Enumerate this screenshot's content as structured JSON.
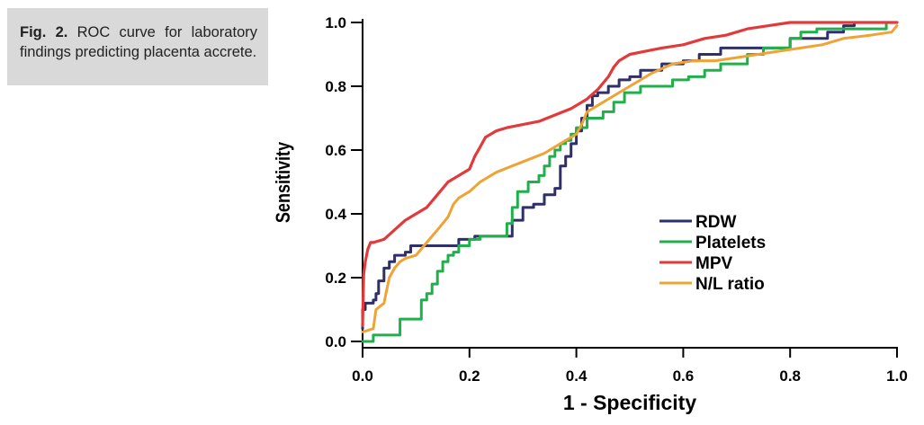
{
  "caption": {
    "label": "Fig. 2.",
    "text": "ROC curve for laboratory findings predicting placenta accrete."
  },
  "chart_data": {
    "type": "line",
    "title": "ROC curve for laboratory findings predicting placenta accrete",
    "xlabel": "1 - Specificity",
    "ylabel": "Sensitivity",
    "xlim": [
      0,
      1
    ],
    "ylim": [
      0,
      1
    ],
    "xticks": [
      "0.0",
      "0.2",
      "0.4",
      "0.6",
      "0.8",
      "1.0"
    ],
    "yticks": [
      "0.0",
      "0.2",
      "0.4",
      "0.6",
      "0.8",
      "1.0"
    ],
    "legend_position": "center-right",
    "series": [
      {
        "name": "RDW",
        "color": "#2e2f6b",
        "step": true,
        "x": [
          0,
          0,
          0.005,
          0.005,
          0.02,
          0.02,
          0.025,
          0.025,
          0.03,
          0.03,
          0.04,
          0.04,
          0.05,
          0.05,
          0.06,
          0.06,
          0.08,
          0.08,
          0.09,
          0.09,
          0.18,
          0.18,
          0.21,
          0.21,
          0.28,
          0.28,
          0.3,
          0.3,
          0.32,
          0.32,
          0.34,
          0.34,
          0.36,
          0.36,
          0.37,
          0.37,
          0.38,
          0.38,
          0.39,
          0.39,
          0.4,
          0.4,
          0.41,
          0.41,
          0.42,
          0.42,
          0.43,
          0.43,
          0.44,
          0.44,
          0.46,
          0.46,
          0.48,
          0.48,
          0.5,
          0.5,
          0.52,
          0.52,
          0.56,
          0.56,
          0.6,
          0.6,
          0.63,
          0.63,
          0.67,
          0.67,
          0.8,
          0.8,
          0.87,
          0.87,
          0.9,
          0.9,
          0.92,
          0.92,
          1.0
        ],
        "y": [
          0.04,
          0.1,
          0.1,
          0.12,
          0.12,
          0.13,
          0.13,
          0.15,
          0.15,
          0.19,
          0.19,
          0.23,
          0.23,
          0.25,
          0.25,
          0.27,
          0.27,
          0.28,
          0.28,
          0.3,
          0.3,
          0.32,
          0.32,
          0.33,
          0.33,
          0.38,
          0.38,
          0.42,
          0.42,
          0.43,
          0.43,
          0.46,
          0.46,
          0.48,
          0.48,
          0.55,
          0.55,
          0.58,
          0.58,
          0.62,
          0.62,
          0.66,
          0.66,
          0.7,
          0.7,
          0.74,
          0.74,
          0.77,
          0.77,
          0.78,
          0.78,
          0.8,
          0.8,
          0.82,
          0.82,
          0.83,
          0.83,
          0.85,
          0.85,
          0.87,
          0.87,
          0.88,
          0.88,
          0.9,
          0.9,
          0.92,
          0.92,
          0.95,
          0.95,
          0.97,
          0.97,
          0.99,
          0.99,
          1.0,
          1.0
        ]
      },
      {
        "name": "Platelets",
        "color": "#20b04b",
        "step": true,
        "x": [
          0,
          0,
          0.02,
          0.02,
          0.07,
          0.07,
          0.11,
          0.11,
          0.12,
          0.12,
          0.13,
          0.13,
          0.14,
          0.14,
          0.15,
          0.15,
          0.16,
          0.16,
          0.17,
          0.17,
          0.18,
          0.18,
          0.2,
          0.2,
          0.22,
          0.22,
          0.27,
          0.27,
          0.28,
          0.28,
          0.29,
          0.29,
          0.31,
          0.31,
          0.33,
          0.33,
          0.34,
          0.34,
          0.35,
          0.35,
          0.36,
          0.36,
          0.37,
          0.37,
          0.38,
          0.38,
          0.39,
          0.39,
          0.4,
          0.4,
          0.42,
          0.42,
          0.45,
          0.45,
          0.47,
          0.47,
          0.49,
          0.49,
          0.52,
          0.52,
          0.58,
          0.58,
          0.61,
          0.61,
          0.64,
          0.64,
          0.67,
          0.67,
          0.72,
          0.72,
          0.75,
          0.75,
          0.8,
          0.8,
          0.82,
          0.82,
          0.85,
          0.85,
          0.98,
          0.98,
          1.0
        ],
        "y": [
          0,
          0.0,
          0.0,
          0.02,
          0.02,
          0.07,
          0.07,
          0.13,
          0.13,
          0.15,
          0.15,
          0.18,
          0.18,
          0.22,
          0.22,
          0.25,
          0.25,
          0.27,
          0.27,
          0.28,
          0.28,
          0.3,
          0.3,
          0.32,
          0.32,
          0.33,
          0.33,
          0.37,
          0.37,
          0.42,
          0.42,
          0.47,
          0.47,
          0.5,
          0.5,
          0.52,
          0.52,
          0.55,
          0.55,
          0.58,
          0.58,
          0.6,
          0.6,
          0.62,
          0.62,
          0.63,
          0.63,
          0.65,
          0.65,
          0.67,
          0.67,
          0.7,
          0.7,
          0.72,
          0.72,
          0.75,
          0.75,
          0.78,
          0.78,
          0.8,
          0.8,
          0.82,
          0.82,
          0.83,
          0.83,
          0.85,
          0.85,
          0.87,
          0.87,
          0.9,
          0.9,
          0.92,
          0.92,
          0.95,
          0.95,
          0.97,
          0.97,
          0.98,
          0.98,
          1.0,
          1.0
        ]
      },
      {
        "name": "MPV",
        "color": "#e23a3a",
        "step": false,
        "x": [
          0,
          0.002,
          0.005,
          0.01,
          0.015,
          0.02,
          0.04,
          0.06,
          0.08,
          0.1,
          0.12,
          0.14,
          0.16,
          0.18,
          0.2,
          0.21,
          0.22,
          0.23,
          0.25,
          0.27,
          0.3,
          0.33,
          0.36,
          0.39,
          0.42,
          0.44,
          0.46,
          0.47,
          0.48,
          0.5,
          0.53,
          0.56,
          0.6,
          0.64,
          0.68,
          0.72,
          0.76,
          0.8,
          0.9,
          1.0
        ],
        "y": [
          0.05,
          0.21,
          0.25,
          0.29,
          0.31,
          0.31,
          0.32,
          0.35,
          0.38,
          0.4,
          0.42,
          0.46,
          0.5,
          0.52,
          0.54,
          0.58,
          0.61,
          0.64,
          0.66,
          0.67,
          0.68,
          0.69,
          0.71,
          0.73,
          0.76,
          0.79,
          0.83,
          0.86,
          0.88,
          0.9,
          0.91,
          0.92,
          0.93,
          0.95,
          0.96,
          0.98,
          0.99,
          1.0,
          1.0,
          1.0
        ]
      },
      {
        "name": "N/L ratio",
        "color": "#f0a335",
        "step": false,
        "x": [
          0,
          0.02,
          0.025,
          0.04,
          0.045,
          0.05,
          0.06,
          0.07,
          0.08,
          0.1,
          0.12,
          0.14,
          0.16,
          0.17,
          0.18,
          0.2,
          0.22,
          0.25,
          0.28,
          0.31,
          0.34,
          0.37,
          0.4,
          0.41,
          0.42,
          0.44,
          0.47,
          0.5,
          0.54,
          0.58,
          0.62,
          0.66,
          0.7,
          0.74,
          0.78,
          0.82,
          0.86,
          0.9,
          0.95,
          0.99,
          1.0
        ],
        "y": [
          0.03,
          0.04,
          0.1,
          0.12,
          0.16,
          0.2,
          0.23,
          0.25,
          0.26,
          0.27,
          0.31,
          0.35,
          0.39,
          0.43,
          0.45,
          0.47,
          0.5,
          0.53,
          0.55,
          0.57,
          0.59,
          0.62,
          0.65,
          0.68,
          0.72,
          0.74,
          0.77,
          0.8,
          0.84,
          0.87,
          0.88,
          0.88,
          0.89,
          0.9,
          0.91,
          0.92,
          0.93,
          0.95,
          0.96,
          0.97,
          0.99
        ]
      }
    ]
  }
}
